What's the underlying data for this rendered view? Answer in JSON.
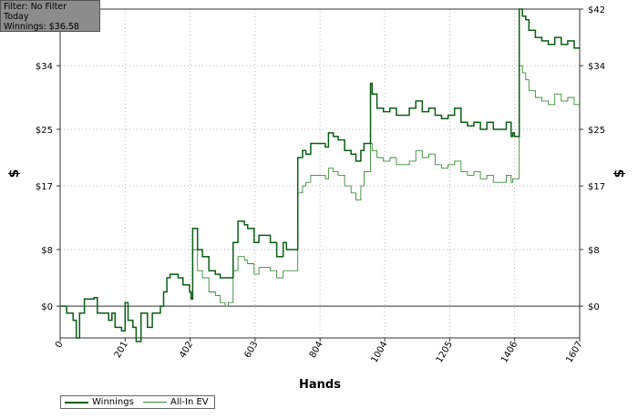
{
  "info_box": {
    "filter": "Filter: No Filter",
    "period": "Today",
    "winnings": "Winnings: $36.58"
  },
  "colors": {
    "winnings": "#0b5d16",
    "all_in_ev": "#3a8a3a",
    "grid": "#b8b8b8",
    "zero_line": "#333333",
    "axis": "#333333"
  },
  "chart_data": {
    "type": "line",
    "xlabel": "Hands",
    "ylabel": "$",
    "xlim": [
      0,
      1607
    ],
    "ylim": [
      -4.5,
      42
    ],
    "x_ticks": [
      0,
      201,
      402,
      603,
      804,
      1004,
      1205,
      1406,
      1607
    ],
    "y_ticks": [
      0,
      8,
      17,
      25,
      34,
      42
    ],
    "y_tick_labels": [
      "$0",
      "$8",
      "$17",
      "$25",
      "$34",
      "$42"
    ],
    "grid": true,
    "legend_position": "bottom-left",
    "series": [
      {
        "name": "Winnings",
        "x": [
          0,
          20,
          40,
          50,
          60,
          75,
          90,
          105,
          115,
          130,
          150,
          160,
          170,
          190,
          201,
          210,
          225,
          235,
          250,
          270,
          285,
          300,
          310,
          320,
          330,
          340,
          345,
          365,
          380,
          400,
          405,
          410,
          425,
          440,
          460,
          480,
          495,
          510,
          520,
          535,
          550,
          570,
          580,
          600,
          615,
          630,
          650,
          670,
          690,
          700,
          730,
          735,
          750,
          760,
          775,
          800,
          820,
          830,
          845,
          860,
          880,
          900,
          915,
          930,
          940,
          960,
          965,
          980,
          1000,
          1020,
          1040,
          1060,
          1080,
          1100,
          1120,
          1140,
          1160,
          1180,
          1200,
          1220,
          1240,
          1260,
          1280,
          1300,
          1320,
          1340,
          1360,
          1380,
          1395,
          1400,
          1405,
          1420,
          1430,
          1440,
          1450,
          1470,
          1490,
          1510,
          1530,
          1550,
          1570,
          1590,
          1607
        ],
        "values": [
          0.0,
          -1.0,
          -2.0,
          -4.5,
          -1.0,
          1.0,
          1.0,
          1.2,
          -1.0,
          -1.0,
          -2.0,
          -1.0,
          -3.0,
          -3.5,
          0.5,
          -2.0,
          -3.0,
          -5.0,
          -1.0,
          -3.0,
          -1.0,
          -1.0,
          0.0,
          2.0,
          4.0,
          4.5,
          4.5,
          4.0,
          3.0,
          2.0,
          1.0,
          11.0,
          8.0,
          7.0,
          5.0,
          4.5,
          4.0,
          4.0,
          4.0,
          9.0,
          12.0,
          11.5,
          11.0,
          9.0,
          10.0,
          10.0,
          9.0,
          7.0,
          9.0,
          8.0,
          8.0,
          21.0,
          22.0,
          21.5,
          23.0,
          23.0,
          22.5,
          24.5,
          24.0,
          23.5,
          22.0,
          21.5,
          20.5,
          22.0,
          23.0,
          31.5,
          30.0,
          28.0,
          27.5,
          28.0,
          27.0,
          27.0,
          28.0,
          29.0,
          27.5,
          28.0,
          27.0,
          26.5,
          27.0,
          28.0,
          26.0,
          25.5,
          26.0,
          25.0,
          26.0,
          25.0,
          25.0,
          26.0,
          24.0,
          24.5,
          24.0,
          42.0,
          41.0,
          40.5,
          39.0,
          38.0,
          37.5,
          37.0,
          38.0,
          37.0,
          37.5,
          36.5,
          36.58
        ]
      },
      {
        "name": "All-In EV",
        "x": [
          0,
          20,
          40,
          50,
          60,
          75,
          90,
          105,
          115,
          130,
          150,
          160,
          170,
          190,
          201,
          210,
          225,
          235,
          250,
          270,
          285,
          300,
          310,
          320,
          330,
          340,
          345,
          365,
          380,
          400,
          405,
          410,
          425,
          440,
          460,
          480,
          495,
          510,
          520,
          535,
          550,
          570,
          580,
          600,
          615,
          630,
          650,
          670,
          690,
          700,
          730,
          735,
          750,
          760,
          775,
          800,
          820,
          830,
          845,
          860,
          880,
          900,
          915,
          930,
          940,
          960,
          965,
          980,
          1000,
          1020,
          1040,
          1060,
          1080,
          1100,
          1120,
          1140,
          1160,
          1180,
          1200,
          1220,
          1240,
          1260,
          1280,
          1300,
          1320,
          1340,
          1360,
          1380,
          1395,
          1400,
          1405,
          1420,
          1430,
          1440,
          1450,
          1470,
          1490,
          1510,
          1530,
          1550,
          1570,
          1590,
          1607
        ],
        "values": [
          0.0,
          -1.0,
          -2.0,
          -4.5,
          -1.0,
          1.0,
          1.0,
          1.2,
          -1.0,
          -1.0,
          -2.0,
          -1.0,
          -3.0,
          -3.5,
          0.5,
          -2.0,
          -3.0,
          -5.0,
          -1.0,
          -3.0,
          -1.0,
          -1.0,
          0.0,
          2.0,
          4.0,
          4.5,
          4.5,
          4.0,
          3.0,
          2.0,
          1.0,
          8.0,
          5.0,
          4.0,
          2.0,
          1.5,
          0.5,
          0.0,
          0.5,
          5.0,
          7.0,
          6.5,
          6.0,
          4.5,
          5.5,
          5.5,
          5.0,
          4.0,
          5.0,
          5.0,
          5.0,
          16.0,
          17.0,
          17.5,
          18.5,
          18.5,
          18.0,
          19.5,
          19.0,
          18.5,
          17.0,
          16.0,
          15.0,
          17.0,
          19.0,
          23.0,
          22.0,
          21.0,
          20.5,
          21.0,
          20.0,
          20.0,
          20.5,
          22.0,
          21.0,
          21.5,
          20.0,
          19.5,
          20.0,
          20.5,
          19.0,
          18.5,
          19.0,
          18.0,
          18.5,
          17.5,
          17.5,
          18.5,
          17.5,
          18.0,
          18.0,
          34.0,
          33.0,
          32.0,
          30.5,
          29.5,
          29.0,
          28.5,
          30.0,
          29.0,
          29.5,
          28.5,
          28.5
        ]
      }
    ]
  }
}
